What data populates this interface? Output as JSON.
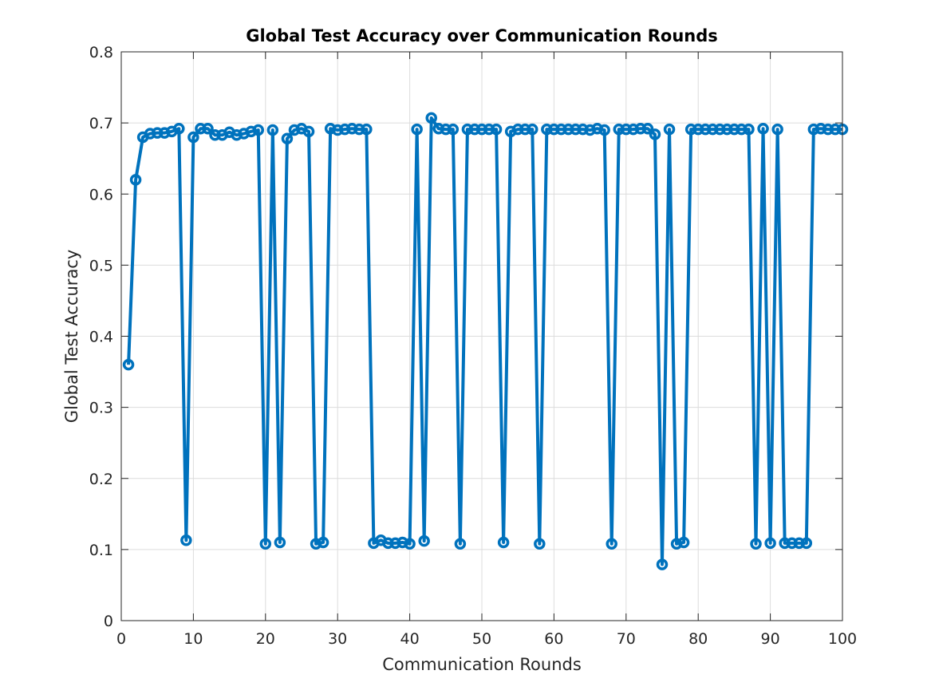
{
  "figure": {
    "background": "#ffffff",
    "line_color": "#0072bd",
    "grid_color": "#dcdcdc",
    "axis_color": "#262626"
  },
  "chart_data": {
    "type": "line",
    "title": "Global Test Accuracy over Communication Rounds",
    "xlabel": "Communication Rounds",
    "ylabel": "Global Test Accuracy",
    "xlim": [
      0,
      100
    ],
    "ylim": [
      0,
      0.8
    ],
    "xticks": [
      0,
      10,
      20,
      30,
      40,
      50,
      60,
      70,
      80,
      90,
      100
    ],
    "yticks": [
      0,
      0.1,
      0.2,
      0.3,
      0.4,
      0.5,
      0.6,
      0.7,
      0.8
    ],
    "xtick_labels": [
      "0",
      "10",
      "20",
      "30",
      "40",
      "50",
      "60",
      "70",
      "80",
      "90",
      "100"
    ],
    "ytick_labels": [
      "0",
      "0.1",
      "0.2",
      "0.3",
      "0.4",
      "0.5",
      "0.6",
      "0.7",
      "0.8"
    ],
    "grid": true,
    "marker": "circle",
    "series": [
      {
        "x": [
          1,
          2,
          3,
          4,
          5,
          6,
          7,
          8,
          9,
          10,
          11,
          12,
          13,
          14,
          15,
          16,
          17,
          18,
          19,
          20,
          21,
          22,
          23,
          24,
          25,
          26,
          27,
          28,
          29,
          30,
          31,
          32,
          33,
          34,
          35,
          36,
          37,
          38,
          39,
          40,
          41,
          42,
          43,
          44,
          45,
          46,
          47,
          48,
          49,
          50,
          51,
          52,
          53,
          54,
          55,
          56,
          57,
          58,
          59,
          60,
          61,
          62,
          63,
          64,
          65,
          66,
          67,
          68,
          69,
          70,
          71,
          72,
          73,
          74,
          75,
          76,
          77,
          78,
          79,
          80,
          81,
          82,
          83,
          84,
          85,
          86,
          87,
          88,
          89,
          90,
          91,
          92,
          93,
          94,
          95,
          96,
          97,
          98,
          99,
          100
        ],
        "y": [
          0.36,
          0.62,
          0.68,
          0.685,
          0.686,
          0.686,
          0.688,
          0.692,
          0.113,
          0.68,
          0.692,
          0.692,
          0.683,
          0.683,
          0.687,
          0.683,
          0.685,
          0.688,
          0.69,
          0.108,
          0.69,
          0.11,
          0.678,
          0.69,
          0.692,
          0.688,
          0.108,
          0.11,
          0.692,
          0.69,
          0.691,
          0.692,
          0.691,
          0.691,
          0.109,
          0.113,
          0.109,
          0.109,
          0.11,
          0.108,
          0.691,
          0.112,
          0.707,
          0.692,
          0.691,
          0.691,
          0.108,
          0.691,
          0.691,
          0.691,
          0.691,
          0.691,
          0.11,
          0.688,
          0.691,
          0.691,
          0.691,
          0.108,
          0.691,
          0.691,
          0.691,
          0.691,
          0.691,
          0.691,
          0.69,
          0.692,
          0.69,
          0.108,
          0.691,
          0.691,
          0.691,
          0.692,
          0.692,
          0.684,
          0.079,
          0.691,
          0.108,
          0.11,
          0.691,
          0.691,
          0.691,
          0.691,
          0.691,
          0.691,
          0.691,
          0.691,
          0.691,
          0.108,
          0.692,
          0.109,
          0.691,
          0.109,
          0.109,
          0.109,
          0.109,
          0.691,
          0.692,
          0.691,
          0.691,
          0.691
        ]
      }
    ]
  }
}
